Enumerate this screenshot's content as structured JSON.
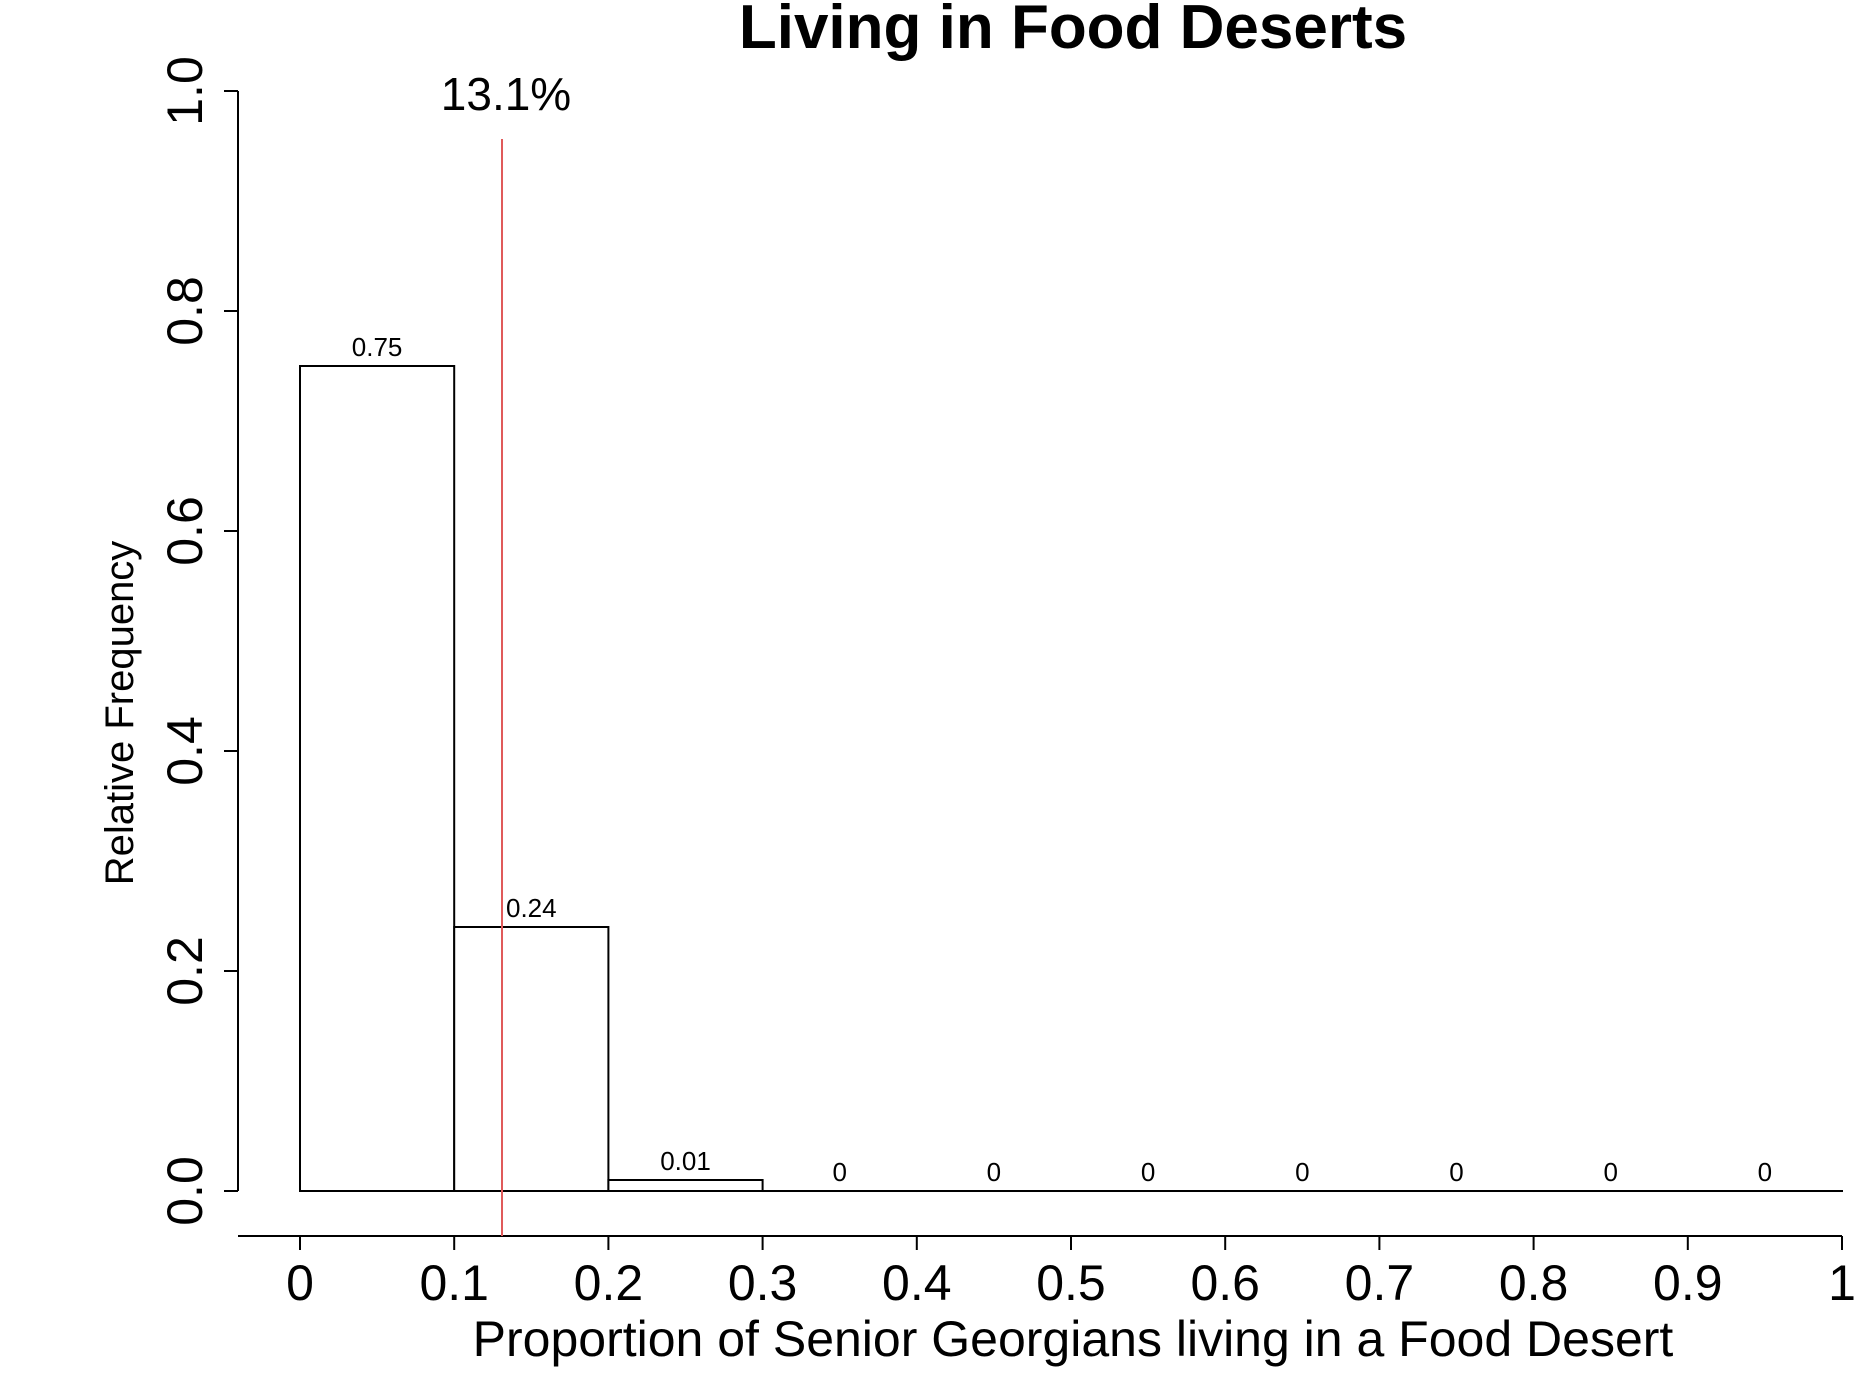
{
  "chart_data": {
    "type": "histogram",
    "title": "Living in Food Deserts",
    "x_label": "Proportion of Senior Georgians living in a Food Desert",
    "y_label": "Relative Frequency",
    "bins": [
      0,
      0.1,
      0.2,
      0.3,
      0.4,
      0.5,
      0.6,
      0.7,
      0.8,
      0.9,
      1
    ],
    "values": [
      0.75,
      0.24,
      0.01,
      0,
      0,
      0,
      0,
      0,
      0,
      0
    ],
    "color": "#ffffff",
    "edge_color": "#000000",
    "xlim": [
      0,
      1
    ],
    "xticks": [
      0,
      0.1,
      0.2,
      0.3,
      0.4,
      0.5,
      0.6,
      0.7,
      0.8,
      0.9,
      1
    ],
    "ylim": [
      0,
      1
    ],
    "yticks": [
      {
        "value": 0,
        "label": "0.0"
      },
      0.2,
      0.4,
      0.6,
      0.8,
      {
        "value": 1,
        "label": "1.0"
      }
    ],
    "grid": false,
    "reference_line": {
      "value": 0.131,
      "label": "13.1%",
      "color": "#e05a5a"
    }
  }
}
